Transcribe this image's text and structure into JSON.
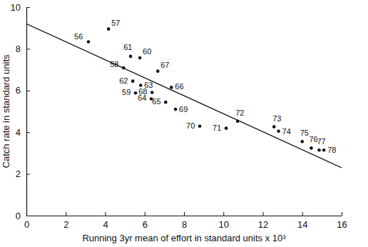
{
  "chart_data": {
    "type": "scatter",
    "x_label": "Running 3yr mean of effort in standard units x 10³",
    "y_label": "Catch rate in standard units",
    "xlim": [
      0,
      16
    ],
    "xticks": [
      0,
      2,
      4,
      6,
      8,
      10,
      12,
      14,
      16
    ],
    "ylim": [
      0,
      10
    ],
    "yticks": [
      0,
      2,
      4,
      6,
      8,
      10
    ],
    "grid": false,
    "series": [
      {
        "type": "scatter",
        "marker": "circle",
        "color": "#111111",
        "x": [
          3.15,
          4.17,
          4.93,
          5.54,
          5.76,
          5.29,
          5.4,
          5.8,
          6.34,
          7.07,
          7.36,
          6.67,
          6.38,
          7.57,
          8.8,
          10.14,
          10.72,
          12.57,
          12.8,
          14.0,
          14.46,
          14.86,
          15.1
        ],
        "values": [
          8.34,
          8.95,
          7.09,
          5.88,
          7.57,
          7.64,
          6.45,
          6.25,
          5.6,
          5.44,
          6.15,
          6.93,
          5.91,
          5.1,
          4.29,
          4.19,
          4.53,
          4.26,
          4.05,
          3.55,
          3.24,
          3.14,
          3.14
        ],
        "point_labels": [
          "56",
          "57",
          "58",
          "59",
          "60",
          "61",
          "62",
          "63",
          "64",
          "65",
          "66",
          "67",
          "68",
          "69",
          "70",
          "71",
          "72",
          "73",
          "74",
          "75",
          "76",
          "77",
          "78"
        ]
      },
      {
        "type": "line",
        "line_style": "solid",
        "color": "#111111",
        "x": [
          0,
          16
        ],
        "values": [
          9.2,
          2.3
        ]
      }
    ]
  }
}
